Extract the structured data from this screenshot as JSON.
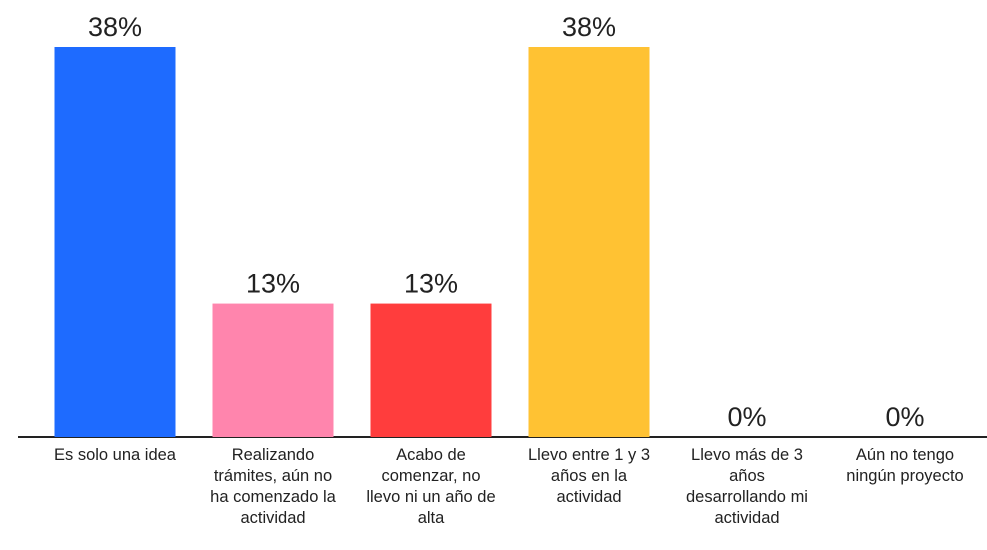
{
  "chart_data": {
    "type": "bar",
    "categories": [
      "Es solo una idea",
      "Realizando trámites, aún no ha comenzado la actividad",
      "Acabo de comenzar, no llevo ni un año de alta",
      "Llevo entre 1 y 3 años en la actividad",
      "Llevo más de 3 años desarrollando mi actividad",
      "Aún no tengo ningún proyecto"
    ],
    "values": [
      38,
      13,
      13,
      38,
      0,
      0
    ],
    "value_labels": [
      "38%",
      "13%",
      "13%",
      "38%",
      "0%",
      "0%"
    ],
    "colors": [
      "#1e6bff",
      "#ff85ad",
      "#ff3d3d",
      "#ffc233",
      "#999999",
      "#999999"
    ]
  }
}
